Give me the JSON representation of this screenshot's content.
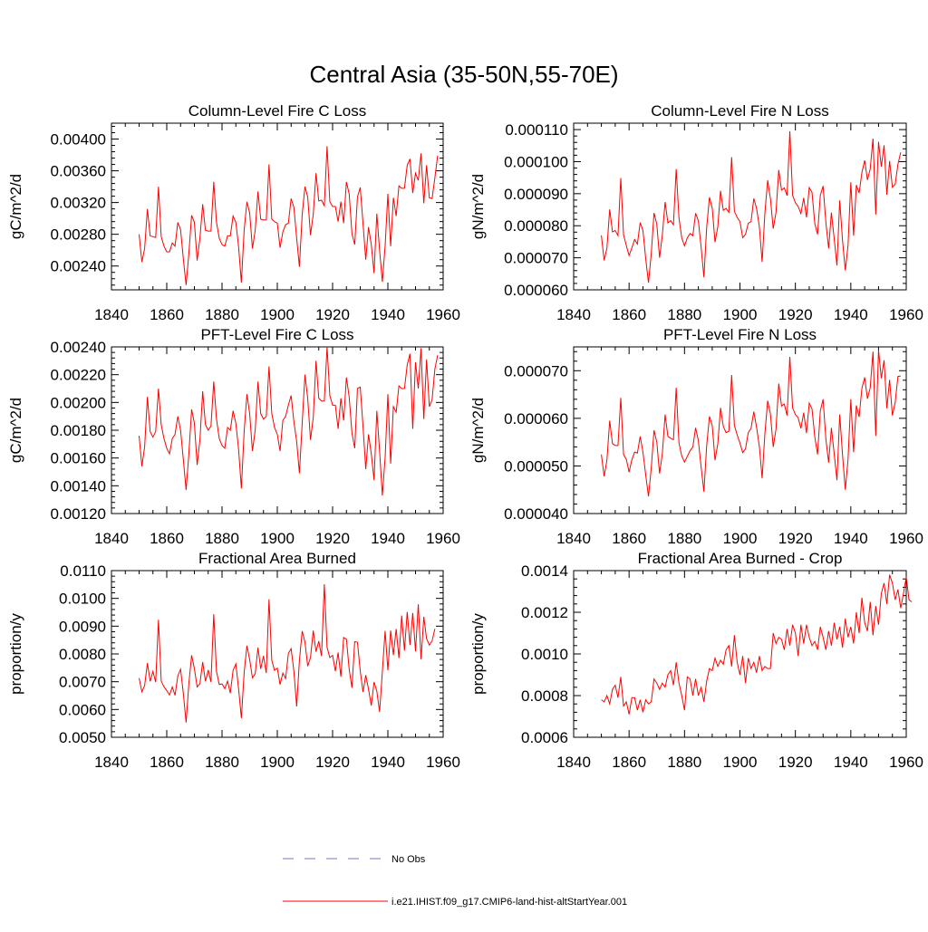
{
  "figure": {
    "title": "Central Asia (35-50N,55-70E)"
  },
  "legend": {
    "entries": [
      {
        "label": "No Obs",
        "color": "#7777cc",
        "style": "dashed"
      },
      {
        "label": "i.e21.IHIST.f09_g17.CMIP6-land-hist-altStartYear.001",
        "color": "#ff0000",
        "style": "solid"
      }
    ]
  },
  "chart_data": [
    {
      "type": "line",
      "title": "Column-Level Fire C Loss",
      "ylabel": "gC/m^2/d",
      "xlim": [
        1840,
        1960
      ],
      "ylim": [
        0.0021,
        0.0042
      ],
      "xticks": [
        1840,
        1860,
        1880,
        1900,
        1920,
        1940,
        1960
      ],
      "xtick_labels": [
        "1840",
        "1860",
        "1880",
        "1900",
        "1920",
        "1940",
        "1960"
      ],
      "yticks": [
        0.0024,
        0.0028,
        0.0032,
        0.0036,
        0.004
      ],
      "ytick_labels": [
        "0.00240",
        "0.00280",
        "0.00320",
        "0.00360",
        "0.00400"
      ],
      "series": [
        {
          "color": "#ff0000",
          "x_start": 1850,
          "values": [
            0.0028,
            0.00245,
            0.00262,
            0.00312,
            0.00278,
            0.00277,
            0.00276,
            0.0034,
            0.00277,
            0.00265,
            0.00258,
            0.00258,
            0.00269,
            0.00265,
            0.00295,
            0.00286,
            0.00249,
            0.00216,
            0.00256,
            0.00304,
            0.00295,
            0.00247,
            0.00275,
            0.00318,
            0.00285,
            0.00284,
            0.00284,
            0.00346,
            0.00295,
            0.00275,
            0.00267,
            0.00265,
            0.00278,
            0.00278,
            0.00303,
            0.00295,
            0.00264,
            0.00219,
            0.00285,
            0.00321,
            0.00307,
            0.00262,
            0.00285,
            0.00334,
            0.00299,
            0.00298,
            0.00298,
            0.00368,
            0.00299,
            0.00296,
            0.00294,
            0.00263,
            0.00283,
            0.00292,
            0.00294,
            0.00325,
            0.00314,
            0.00275,
            0.00239,
            0.00305,
            0.0034,
            0.00327,
            0.00279,
            0.00305,
            0.00357,
            0.00322,
            0.00323,
            0.00316,
            0.00391,
            0.00321,
            0.00315,
            0.00315,
            0.00296,
            0.00321,
            0.00294,
            0.00346,
            0.00331,
            0.00281,
            0.00267,
            0.00327,
            0.00339,
            0.00294,
            0.00248,
            0.00289,
            0.00267,
            0.00231,
            0.00306,
            0.0026,
            0.0022,
            0.00265,
            0.00331,
            0.00265,
            0.00326,
            0.00303,
            0.00341,
            0.00338,
            0.00338,
            0.00367,
            0.00375,
            0.00332,
            0.00357,
            0.00348,
            0.00382,
            0.00319,
            0.00367,
            0.00326,
            0.00325,
            0.00351,
            0.00379
          ]
        }
      ]
    },
    {
      "type": "line",
      "title": "Column-Level Fire N Loss",
      "ylabel": "gN/m^2/d",
      "xlim": [
        1840,
        1960
      ],
      "ylim": [
        6e-05,
        0.000112
      ],
      "xticks": [
        1840,
        1860,
        1880,
        1900,
        1920,
        1940,
        1960
      ],
      "xtick_labels": [
        "1840",
        "1860",
        "1880",
        "1900",
        "1920",
        "1940",
        "1960"
      ],
      "yticks": [
        6e-05,
        7e-05,
        8e-05,
        9e-05,
        0.0001,
        0.00011
      ],
      "ytick_labels": [
        "0.000060",
        "0.000070",
        "0.000080",
        "0.000090",
        "0.000100",
        "0.000110"
      ],
      "series": [
        {
          "color": "#ff0000",
          "x_start": 1850,
          "values": [
            7.7e-05,
            6.92e-05,
            7.3e-05,
            8.51e-05,
            7.81e-05,
            7.85e-05,
            7.69e-05,
            9.49e-05,
            7.72e-05,
            7.38e-05,
            7.07e-05,
            7.31e-05,
            7.57e-05,
            7.43e-05,
            8.1e-05,
            7.85e-05,
            6.97e-05,
            6.22e-05,
            7.13e-05,
            8.4e-05,
            8.05e-05,
            7e-05,
            7.72e-05,
            8.74e-05,
            8.09e-05,
            8.16e-05,
            8.03e-05,
            9.77e-05,
            8.24e-05,
            7.62e-05,
            7.37e-05,
            7.62e-05,
            7.76e-05,
            7.69e-05,
            8.39e-05,
            8.15e-05,
            7.32e-05,
            6.39e-05,
            7.96e-05,
            8.89e-05,
            8.55e-05,
            7.49e-05,
            7.96e-05,
            9.09e-05,
            8.48e-05,
            8.54e-05,
            8.42e-05,
            0.0001014,
            8.45e-05,
            8.26e-05,
            8.13e-05,
            7.63e-05,
            7.73e-05,
            8.08e-05,
            8.13e-05,
            8.85e-05,
            8.54e-05,
            7.97e-05,
            6.87e-05,
            8.4e-05,
            9.42e-05,
            8.85e-05,
            7.91e-05,
            8.41e-05,
            9.74e-05,
            9.11e-05,
            9.18e-05,
            8.94e-05,
            0.0001095,
            8.95e-05,
            8.72e-05,
            8.6e-05,
            8.38e-05,
            8.87e-05,
            8.26e-05,
            9.19e-05,
            9.04e-05,
            8.07e-05,
            7.73e-05,
            8.95e-05,
            9.24e-05,
            8.1e-05,
            7.29e-05,
            8.41e-05,
            7.6e-05,
            6.76e-05,
            8.79e-05,
            7.55e-05,
            6.61e-05,
            7.39e-05,
            9.36e-05,
            7.69e-05,
            9.27e-05,
            9.02e-05,
            9.66e-05,
            0.0001004,
            9.43e-05,
            9.77e-05,
            0.0001072,
            8.35e-05,
            0.0001062,
            9.84e-05,
            0.0001051,
            8.97e-05,
            0.0001002,
            9.2e-05,
            9.29e-05,
            9.92e-05,
            0.0001029
          ]
        }
      ]
    },
    {
      "type": "line",
      "title": "PFT-Level Fire C Loss",
      "ylabel": "gC/m^2/d",
      "xlim": [
        1840,
        1960
      ],
      "ylim": [
        0.0012,
        0.0024
      ],
      "xticks": [
        1840,
        1860,
        1880,
        1900,
        1920,
        1940,
        1960
      ],
      "xtick_labels": [
        "1840",
        "1860",
        "1880",
        "1900",
        "1920",
        "1940",
        "1960"
      ],
      "yticks": [
        0.0012,
        0.0014,
        0.0016,
        0.0018,
        0.002,
        0.0022,
        0.0024
      ],
      "ytick_labels": [
        "0.00120",
        "0.00140",
        "0.00160",
        "0.00180",
        "0.00200",
        "0.00220",
        "0.00240"
      ],
      "series": [
        {
          "color": "#ff0000",
          "x_start": 1850,
          "values": [
            0.00176,
            0.00154,
            0.00168,
            0.00204,
            0.00179,
            0.00175,
            0.00179,
            0.0021,
            0.00184,
            0.00174,
            0.00167,
            0.00163,
            0.00174,
            0.00177,
            0.0019,
            0.0018,
            0.00159,
            0.00137,
            0.00163,
            0.00195,
            0.00185,
            0.00155,
            0.00173,
            0.00208,
            0.00184,
            0.0018,
            0.00183,
            0.00215,
            0.00188,
            0.00174,
            0.00169,
            0.00167,
            0.00182,
            0.0018,
            0.00194,
            0.00185,
            0.00166,
            0.00138,
            0.00179,
            0.00206,
            0.00192,
            0.00165,
            0.0018,
            0.00215,
            0.00192,
            0.00188,
            0.0019,
            0.00226,
            0.00192,
            0.00182,
            0.00177,
            0.00165,
            0.00187,
            0.0019,
            0.00198,
            0.00205,
            0.00186,
            0.00172,
            0.00149,
            0.00185,
            0.0022,
            0.00203,
            0.00173,
            0.00189,
            0.0023,
            0.00203,
            0.00201,
            0.00201,
            0.0024,
            0.00205,
            0.00198,
            0.00198,
            0.00181,
            0.00203,
            0.00187,
            0.00218,
            0.00204,
            0.00178,
            0.00167,
            0.0021,
            0.00211,
            0.00183,
            0.00152,
            0.00177,
            0.00163,
            0.00144,
            0.00194,
            0.00165,
            0.00133,
            0.0016,
            0.00206,
            0.00156,
            0.00197,
            0.00193,
            0.00212,
            0.0021,
            0.0021,
            0.00227,
            0.00235,
            0.00181,
            0.00229,
            0.0021,
            0.00239,
            0.00188,
            0.00231,
            0.00197,
            0.00202,
            0.00224,
            0.00234
          ]
        }
      ]
    },
    {
      "type": "line",
      "title": "PFT-Level Fire N Loss",
      "ylabel": "gN/m^2/d",
      "xlim": [
        1840,
        1960
      ],
      "ylim": [
        4e-05,
        7.5e-05
      ],
      "xticks": [
        1840,
        1860,
        1880,
        1900,
        1920,
        1940,
        1960
      ],
      "xtick_labels": [
        "1840",
        "1860",
        "1880",
        "1900",
        "1920",
        "1940",
        "1960"
      ],
      "yticks": [
        4e-05,
        5e-05,
        6e-05,
        7e-05
      ],
      "ytick_labels": [
        "0.000040",
        "0.000050",
        "0.000060",
        "0.000070"
      ],
      "series": [
        {
          "color": "#ff0000",
          "x_start": 1850,
          "values": [
            5.24e-05,
            4.78e-05,
            5.12e-05,
            5.95e-05,
            5.47e-05,
            5.43e-05,
            5.43e-05,
            6.43e-05,
            5.24e-05,
            5.14e-05,
            4.87e-05,
            5.13e-05,
            5.29e-05,
            5.27e-05,
            5.62e-05,
            5.29e-05,
            4.81e-05,
            4.36e-05,
            4.96e-05,
            5.75e-05,
            5.5e-05,
            4.84e-05,
            5.26e-05,
            6.08e-05,
            5.62e-05,
            5.58e-05,
            5.55e-05,
            6.64e-05,
            5.48e-05,
            5.21e-05,
            5.08e-05,
            5.2e-05,
            5.32e-05,
            5.4e-05,
            5.8e-05,
            5.53e-05,
            4.97e-05,
            4.46e-05,
            5.43e-05,
            6.04e-05,
            5.85e-05,
            5.12e-05,
            5.46e-05,
            6.22e-05,
            5.83e-05,
            5.7e-05,
            5.73e-05,
            6.91e-05,
            5.85e-05,
            5.65e-05,
            5.48e-05,
            5.28e-05,
            5.36e-05,
            5.7e-05,
            5.79e-05,
            6.14e-05,
            5.81e-05,
            5.41e-05,
            4.74e-05,
            5.68e-05,
            6.37e-05,
            6.09e-05,
            5.4e-05,
            5.77e-05,
            6.73e-05,
            6.26e-05,
            6.3e-05,
            6.06e-05,
            7.29e-05,
            6.22e-05,
            6.08e-05,
            6.01e-05,
            5.79e-05,
            6.12e-05,
            5.69e-05,
            6.32e-05,
            6.2e-05,
            5.61e-05,
            5.24e-05,
            6.16e-05,
            6.4e-05,
            5.56e-05,
            5.07e-05,
            5.8e-05,
            5.26e-05,
            4.7e-05,
            6.08e-05,
            5.24e-05,
            4.5e-05,
            5.14e-05,
            6.4e-05,
            5.29e-05,
            6.27e-05,
            6.03e-05,
            6.63e-05,
            6.86e-05,
            6.41e-05,
            6.64e-05,
            7.4e-05,
            5.63e-05,
            7.43e-05,
            6.84e-05,
            7.22e-05,
            6.21e-05,
            6.81e-05,
            6.06e-05,
            6.33e-05,
            6.88e-05,
            6.89e-05
          ]
        }
      ]
    },
    {
      "type": "line",
      "title": "Fractional Area Burned",
      "ylabel": "proportion/y",
      "xlim": [
        1840,
        1960
      ],
      "ylim": [
        0.005,
        0.011
      ],
      "xticks": [
        1840,
        1860,
        1880,
        1900,
        1920,
        1940,
        1960
      ],
      "xtick_labels": [
        "1840",
        "1860",
        "1880",
        "1900",
        "1920",
        "1940",
        "1960"
      ],
      "yticks": [
        0.005,
        0.006,
        0.007,
        0.008,
        0.009,
        0.01,
        0.011
      ],
      "ytick_labels": [
        "0.0050",
        "0.0060",
        "0.0070",
        "0.0080",
        "0.0090",
        "0.0100",
        "0.0110"
      ],
      "series": [
        {
          "color": "#ff0000",
          "x_start": 1850,
          "values": [
            0.00713,
            0.00664,
            0.00686,
            0.00767,
            0.00701,
            0.00737,
            0.00699,
            0.00923,
            0.00702,
            0.00682,
            0.00668,
            0.00652,
            0.00681,
            0.00651,
            0.00721,
            0.00745,
            0.00658,
            0.00553,
            0.00694,
            0.00795,
            0.00747,
            0.00681,
            0.00693,
            0.00771,
            0.00701,
            0.00742,
            0.00699,
            0.00943,
            0.00737,
            0.0069,
            0.00692,
            0.00675,
            0.00702,
            0.00659,
            0.00741,
            0.00764,
            0.00674,
            0.00569,
            0.00732,
            0.0083,
            0.0078,
            0.00714,
            0.00729,
            0.00823,
            0.00746,
            0.00793,
            0.00731,
            0.00997,
            0.00777,
            0.00741,
            0.00749,
            0.0069,
            0.00731,
            0.00711,
            0.00802,
            0.00819,
            0.00738,
            0.00611,
            0.00777,
            0.00882,
            0.00843,
            0.00756,
            0.00787,
            0.00884,
            0.00808,
            0.00846,
            0.00792,
            0.01051,
            0.00824,
            0.00787,
            0.00795,
            0.00738,
            0.00805,
            0.00718,
            0.00859,
            0.00853,
            0.00745,
            0.00678,
            0.00844,
            0.00842,
            0.00739,
            0.00663,
            0.00724,
            0.00673,
            0.00614,
            0.00699,
            0.00666,
            0.00591,
            0.00736,
            0.00883,
            0.00741,
            0.00884,
            0.00796,
            0.0089,
            0.00785,
            0.00938,
            0.00812,
            0.00951,
            0.00832,
            0.00948,
            0.00809,
            0.00979,
            0.00781,
            0.00934,
            0.00855,
            0.00832,
            0.00847,
            0.0089
          ]
        }
      ]
    },
    {
      "type": "line",
      "title": "Fractional Area Burned - Crop",
      "ylabel": "proportion/y",
      "xlim": [
        1840,
        1960
      ],
      "ylim": [
        0.0006,
        0.0014
      ],
      "xticks": [
        1840,
        1860,
        1880,
        1900,
        1920,
        1940,
        1960
      ],
      "xtick_labels": [
        "1840",
        "1860",
        "1880",
        "1900",
        "1920",
        "1940",
        "1960"
      ],
      "yticks": [
        0.0006,
        0.0008,
        0.001,
        0.0012,
        0.0014
      ],
      "ytick_labels": [
        "0.0006",
        "0.0008",
        "0.0010",
        "0.0012",
        "0.0014"
      ],
      "series": [
        {
          "color": "#ff0000",
          "x_start": 1850,
          "values": [
            0.00078,
            0.00077,
            0.0008,
            0.00076,
            0.00083,
            0.00085,
            0.00079,
            0.00089,
            0.00075,
            0.00077,
            0.00071,
            0.00079,
            0.00079,
            0.00073,
            0.00078,
            0.00072,
            0.00078,
            0.00076,
            0.00077,
            0.00088,
            0.00086,
            0.00083,
            0.00086,
            0.00084,
            0.0009,
            0.00092,
            0.00085,
            0.00096,
            0.00086,
            0.0008,
            0.00073,
            0.00089,
            0.00088,
            0.0008,
            0.00088,
            0.0008,
            0.00084,
            0.00077,
            0.00087,
            0.00093,
            0.00092,
            0.00098,
            0.00094,
            0.00097,
            0.00095,
            0.00102,
            0.00104,
            0.00094,
            0.00109,
            0.00096,
            0.0009,
            0.00099,
            0.00086,
            0.00098,
            0.00093,
            0.00096,
            0.00091,
            0.00099,
            0.00092,
            0.00094,
            0.00093,
            0.00093,
            0.0011,
            0.00105,
            0.00108,
            0.00107,
            0.00102,
            0.00112,
            0.00104,
            0.00114,
            0.0011,
            0.00099,
            0.00114,
            0.00105,
            0.00114,
            0.00108,
            0.00104,
            0.00106,
            0.00102,
            0.00113,
            0.00108,
            0.00102,
            0.00111,
            0.00104,
            0.00115,
            0.00107,
            0.00113,
            0.00103,
            0.00117,
            0.00108,
            0.00113,
            0.00105,
            0.0012,
            0.0011,
            0.00127,
            0.00115,
            0.00111,
            0.00125,
            0.00109,
            0.00123,
            0.00114,
            0.00129,
            0.00134,
            0.00124,
            0.00138,
            0.00134,
            0.00126,
            0.00131,
            0.00122,
            0.00129,
            0.00137,
            0.00126,
            0.00125
          ]
        }
      ]
    }
  ]
}
